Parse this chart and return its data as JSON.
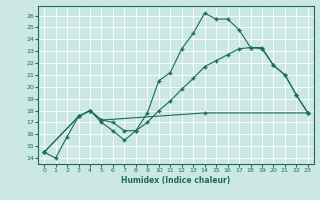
{
  "title": "",
  "xlabel": "Humidex (Indice chaleur)",
  "bg_color": "#cce8e5",
  "line_color": "#1a6b5a",
  "grid_color": "#b0d5d0",
  "xlim": [
    -0.5,
    23.5
  ],
  "ylim": [
    13.5,
    26.8
  ],
  "xticks": [
    0,
    1,
    2,
    3,
    4,
    5,
    6,
    7,
    8,
    9,
    10,
    11,
    12,
    13,
    14,
    15,
    16,
    17,
    18,
    19,
    20,
    21,
    22,
    23
  ],
  "yticks": [
    14,
    15,
    16,
    17,
    18,
    19,
    20,
    21,
    22,
    23,
    24,
    25,
    26
  ],
  "line1_x": [
    0,
    1,
    2,
    3,
    4,
    5,
    6,
    7,
    8,
    9,
    10,
    11,
    12,
    13,
    14,
    15,
    16,
    17,
    18,
    19,
    20,
    21,
    22,
    23
  ],
  "line1_y": [
    14.5,
    14.0,
    15.8,
    17.5,
    18.0,
    17.0,
    16.3,
    15.5,
    16.3,
    17.8,
    20.5,
    21.2,
    23.2,
    24.5,
    26.2,
    25.7,
    25.7,
    24.8,
    23.3,
    23.2,
    21.8,
    21.0,
    19.3,
    17.8
  ],
  "line2_x": [
    0,
    3,
    4,
    5,
    6,
    7,
    8,
    9,
    10,
    11,
    12,
    13,
    14,
    15,
    16,
    17,
    18,
    19,
    20,
    21,
    22,
    23
  ],
  "line2_y": [
    14.5,
    17.5,
    18.0,
    17.2,
    17.0,
    16.3,
    16.3,
    17.0,
    18.0,
    18.8,
    19.8,
    20.7,
    21.7,
    22.2,
    22.7,
    23.2,
    23.3,
    23.3,
    21.8,
    21.0,
    19.3,
    17.8
  ],
  "line3_x": [
    0,
    3,
    4,
    5,
    14,
    23
  ],
  "line3_y": [
    14.5,
    17.5,
    18.0,
    17.2,
    17.8,
    17.8
  ]
}
